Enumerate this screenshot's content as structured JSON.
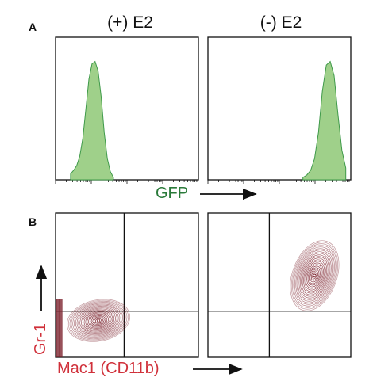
{
  "panels": {
    "a_label": "A",
    "b_label": "B"
  },
  "conditions": [
    "(+) E2",
    "(-) E2"
  ],
  "colors": {
    "histogram_fill": "#9fd08a",
    "histogram_stroke": "#3f9a4a",
    "contour": "#7a1f2a",
    "gfp_text": "#2a7a3a",
    "axis_text_b": "#d0303a"
  },
  "chart_data": [
    {
      "type": "area",
      "panel": "A",
      "condition": "(+) E2",
      "xlabel": "GFP",
      "peak_position": 0.27,
      "log_scale": true,
      "histogram": [
        0.05,
        0.08,
        0.12,
        0.2,
        0.35,
        0.6,
        0.85,
        0.98,
        1.0,
        0.92,
        0.7,
        0.4,
        0.18,
        0.07,
        0.02
      ]
    },
    {
      "type": "area",
      "panel": "A",
      "condition": "(-) E2",
      "xlabel": "GFP",
      "peak_position": 0.83,
      "log_scale": true,
      "histogram": [
        0.02,
        0.04,
        0.08,
        0.18,
        0.4,
        0.75,
        0.97,
        1.0,
        0.88,
        0.55,
        0.25,
        0.1
      ]
    },
    {
      "type": "scatter",
      "panel": "B",
      "condition": "(+) E2",
      "xlabel": "Mac1 (CD11b)",
      "ylabel": "Gr-1",
      "population_center": [
        0.2,
        0.2
      ],
      "quadrant_gate": [
        0.48,
        0.68
      ]
    },
    {
      "type": "scatter",
      "panel": "B",
      "condition": "(-) E2",
      "xlabel": "Mac1 (CD11b)",
      "ylabel": "Gr-1",
      "population_center": [
        0.78,
        0.72
      ],
      "quadrant_gate": [
        0.43,
        0.68
      ]
    }
  ],
  "axes": {
    "gfp_label": "GFP",
    "mac1_label": "Mac1 (CD11b)",
    "gr1_label": "Gr-1"
  }
}
